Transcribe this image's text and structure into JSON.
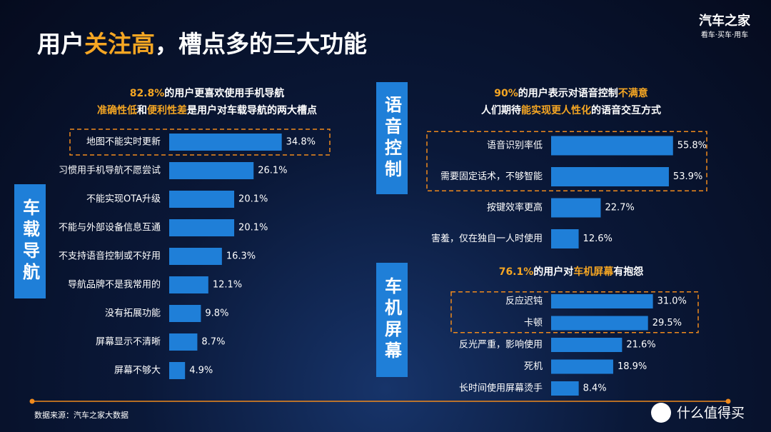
{
  "title": [
    {
      "text": "用户",
      "highlight": false
    },
    {
      "text": "关注高",
      "highlight": true
    },
    {
      "text": "，槽点多的三大功能",
      "highlight": false
    }
  ],
  "brand": {
    "logo": "汽车之家",
    "slogan": "看车·买车·用车"
  },
  "source": "数据来源：汽车之家大数据",
  "watermark": "什么值得买",
  "chart_data": [
    {
      "type": "bar",
      "orientation": "horizontal",
      "section": "车载导航",
      "color": "#1f7fd8",
      "highlight_rows": 1,
      "subtitle": [
        [
          {
            "text": "82.8%",
            "highlight": true
          },
          {
            "text": "的用户更喜欢使用手机导航",
            "highlight": false
          }
        ],
        [
          {
            "text": "准确性低",
            "highlight": true
          },
          {
            "text": "和",
            "highlight": false
          },
          {
            "text": "便利性差",
            "highlight": true
          },
          {
            "text": "是用户对车载导航的两大槽点",
            "highlight": false
          }
        ]
      ],
      "categories": [
        "地图不能实时更新",
        "习惯用手机导航不愿尝试",
        "不能实现OTA升级",
        "不能与外部设备信息互通",
        "不支持语音控制或不好用",
        "导航品牌不是我常用的",
        "没有拓展功能",
        "屏幕显示不清晰",
        "屏幕不够大"
      ],
      "values": [
        34.8,
        26.1,
        20.1,
        20.1,
        16.3,
        12.1,
        9.8,
        8.7,
        4.9
      ],
      "value_labels": [
        "34.8%",
        "26.1%",
        "20.1%",
        "20.1%",
        "16.3%",
        "12.1%",
        "9.8%",
        "8.7%",
        "4.9%"
      ]
    },
    {
      "type": "bar",
      "orientation": "horizontal",
      "section": "语音控制",
      "color": "#1f7fd8",
      "highlight_rows": 2,
      "subtitle": [
        [
          {
            "text": "90%",
            "highlight": true
          },
          {
            "text": "的用户表示对语音控制",
            "highlight": false
          },
          {
            "text": "不满意",
            "highlight": true
          }
        ],
        [
          {
            "text": "人们期待",
            "highlight": false
          },
          {
            "text": "能实现更人性化",
            "highlight": true
          },
          {
            "text": "的语音交互方式",
            "highlight": false
          }
        ]
      ],
      "categories": [
        "语音识别率低",
        "需要固定话术，不够智能",
        "按键效率更高",
        "害羞，仅在独自一人时使用"
      ],
      "values": [
        55.8,
        53.9,
        22.7,
        12.6
      ],
      "value_labels": [
        "55.8%",
        "53.9%",
        "22.7%",
        "12.6%"
      ]
    },
    {
      "type": "bar",
      "orientation": "horizontal",
      "section": "车机屏幕",
      "color": "#1f7fd8",
      "highlight_rows": 2,
      "subtitle": [
        [
          {
            "text": "76.1%",
            "highlight": true
          },
          {
            "text": "的用户对",
            "highlight": false
          },
          {
            "text": "车机屏幕",
            "highlight": true
          },
          {
            "text": "有抱怨",
            "highlight": false
          }
        ]
      ],
      "categories": [
        "反应迟钝",
        "卡顿",
        "反光严重，影响使用",
        "死机",
        "长时间使用屏幕烫手"
      ],
      "values": [
        31.0,
        29.5,
        21.6,
        18.9,
        8.4
      ],
      "value_labels": [
        "31.0%",
        "29.5%",
        "21.6%",
        "18.9%",
        "8.4%"
      ]
    }
  ]
}
